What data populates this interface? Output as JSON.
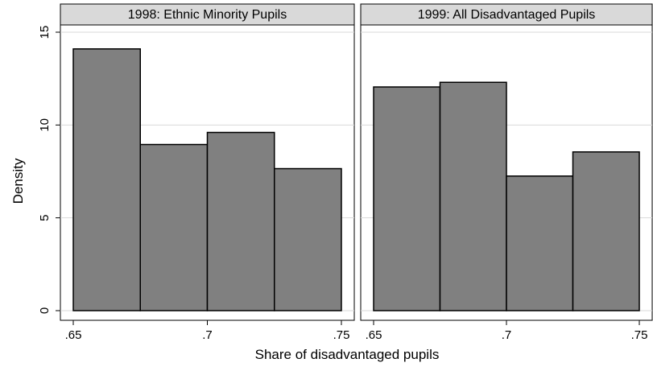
{
  "chart_data": {
    "type": "bar",
    "ylabel": "Density",
    "xlabel": "Share of disadvantaged pupils",
    "ylim": [
      0,
      15
    ],
    "yticks": [
      0,
      5,
      10,
      15
    ],
    "xlim": [
      0.65,
      0.75
    ],
    "xticks": [
      ".65",
      ".7",
      ".75"
    ],
    "xtick_values": [
      0.65,
      0.7,
      0.75
    ],
    "bar_fill": "#808080",
    "bar_stroke": "#000000",
    "panel_header_fill": "#d9d9d9",
    "gridline_color": "#d9d9d9",
    "panels": [
      {
        "title": "1998: Ethnic Minority Pupils",
        "bins": [
          [
            0.65,
            0.675
          ],
          [
            0.675,
            0.7
          ],
          [
            0.7,
            0.725
          ],
          [
            0.725,
            0.75
          ]
        ],
        "values": [
          14.1,
          8.95,
          9.6,
          7.65
        ]
      },
      {
        "title": "1999: All Disadvantaged Pupils",
        "bins": [
          [
            0.65,
            0.675
          ],
          [
            0.675,
            0.7
          ],
          [
            0.7,
            0.725
          ],
          [
            0.725,
            0.75
          ]
        ],
        "values": [
          12.05,
          12.3,
          7.25,
          8.55
        ]
      }
    ]
  }
}
